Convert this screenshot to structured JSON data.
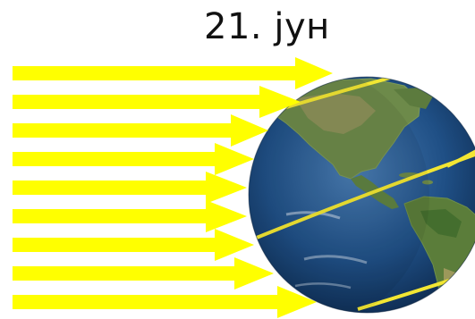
{
  "title": "21. јун",
  "colors": {
    "sunlight": "#ffff00",
    "orbit_line": "#f2e633",
    "ocean_dark": "#0d2f5c",
    "ocean_light": "#3f6fa3",
    "land": "#6f8f4a",
    "desert": "#b8a46a"
  },
  "elements": {
    "sun_rays": 9,
    "globe": "earth-globe"
  }
}
